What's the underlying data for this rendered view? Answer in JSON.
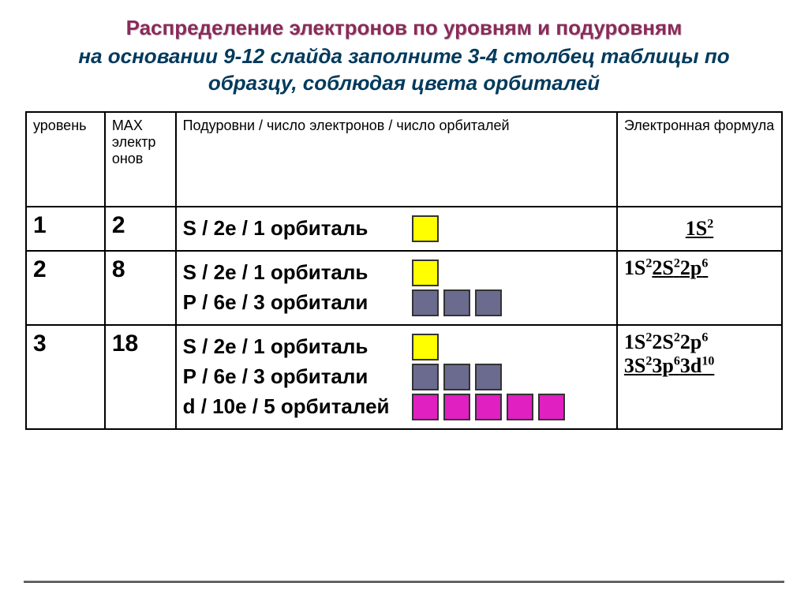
{
  "title": {
    "line1": "Распределение электронов по уровням и подуровням",
    "line2": "на основании 9-12 слайда заполните 3-4 столбец таблицы по",
    "line3": "образцу, соблюдая цвета орбиталей"
  },
  "headers": {
    "level": "уровень",
    "max": "МАХ электр онов",
    "sub": "Подуровни / число электронов / число орбиталей",
    "formula": "Электронная формула"
  },
  "colors": {
    "s": "#ffff00",
    "p": "#6b6b8f",
    "d": "#e020c0"
  },
  "rows": [
    {
      "level": "1",
      "max": "2",
      "subs": [
        {
          "text": "S / 2е / 1 орбиталь",
          "orbital": "s",
          "count": 1
        }
      ],
      "formula_html": "<span class='formula-underline'>1S<sup>2</sup></span>",
      "formula_center": true
    },
    {
      "level": "2",
      "max": "8",
      "subs": [
        {
          "text": "S /  2е / 1 орбиталь",
          "orbital": "s",
          "count": 1
        },
        {
          "text": "Р /  6е / 3 орбитали",
          "orbital": "p",
          "count": 3
        }
      ],
      "formula_html": "1S<sup>2</sup><span class='formula-underline'>2S<sup>2</sup>2p<sup>6</sup></span>"
    },
    {
      "level": "3",
      "max": "18",
      "subs": [
        {
          "text": "S /  2е / 1 орбиталь",
          "orbital": "s",
          "count": 1
        },
        {
          "text": "Р /  6е / 3 орбитали",
          "orbital": "p",
          "count": 3
        },
        {
          "text": "d /  10е / 5 орбиталей",
          "orbital": "d",
          "count": 5
        }
      ],
      "formula_html": "1S<sup>2</sup>2S<sup>2</sup>2p<sup>6</sup><br><span class='formula-underline'>3S<sup>2</sup>3p<sup>6</sup>3d<sup>10</sup></span>"
    }
  ]
}
